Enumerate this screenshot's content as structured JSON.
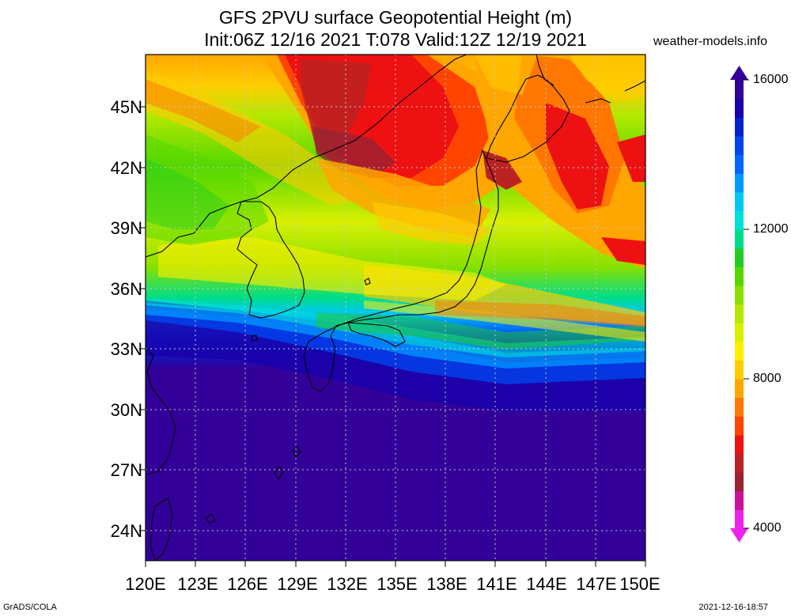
{
  "title": {
    "line1": "GFS 2PVU surface Geopotential Height (m)",
    "line2": "Init:06Z 12/16 2021 T:078 Valid:12Z 12/19 2021"
  },
  "site": "weather-models.info",
  "map": {
    "lat_labels": [
      "45N",
      "42N",
      "39N",
      "36N",
      "33N",
      "30N",
      "27N",
      "24N"
    ],
    "lon_labels": [
      "120E",
      "123E",
      "126E",
      "129E",
      "132E",
      "135E",
      "138E",
      "141E",
      "144E",
      "147E",
      "150E"
    ],
    "extent": {
      "lon_min": 120,
      "lon_max": 150,
      "lat_min": 22.5,
      "lat_max": 47.5
    },
    "gridlines": "dotted"
  },
  "colorbar": {
    "min": 4000,
    "max": 16000,
    "labels": [
      "16000",
      "12000",
      "8000",
      "4000"
    ],
    "colors": [
      "#ee22ee",
      "#cc1199",
      "#992233",
      "#bb2222",
      "#ee1111",
      "#ff4400",
      "#ff7700",
      "#ffa600",
      "#ffcc00",
      "#ffee00",
      "#d8f000",
      "#b4e800",
      "#88e000",
      "#55d800",
      "#22cc22",
      "#00dd88",
      "#00e0d8",
      "#00c8f0",
      "#0099ff",
      "#0066ff",
      "#0044ee",
      "#0022cc",
      "#1a00aa",
      "#330099"
    ]
  },
  "footer": {
    "left": "GrADS/COLA",
    "right": "2021-12-16-18:57"
  }
}
